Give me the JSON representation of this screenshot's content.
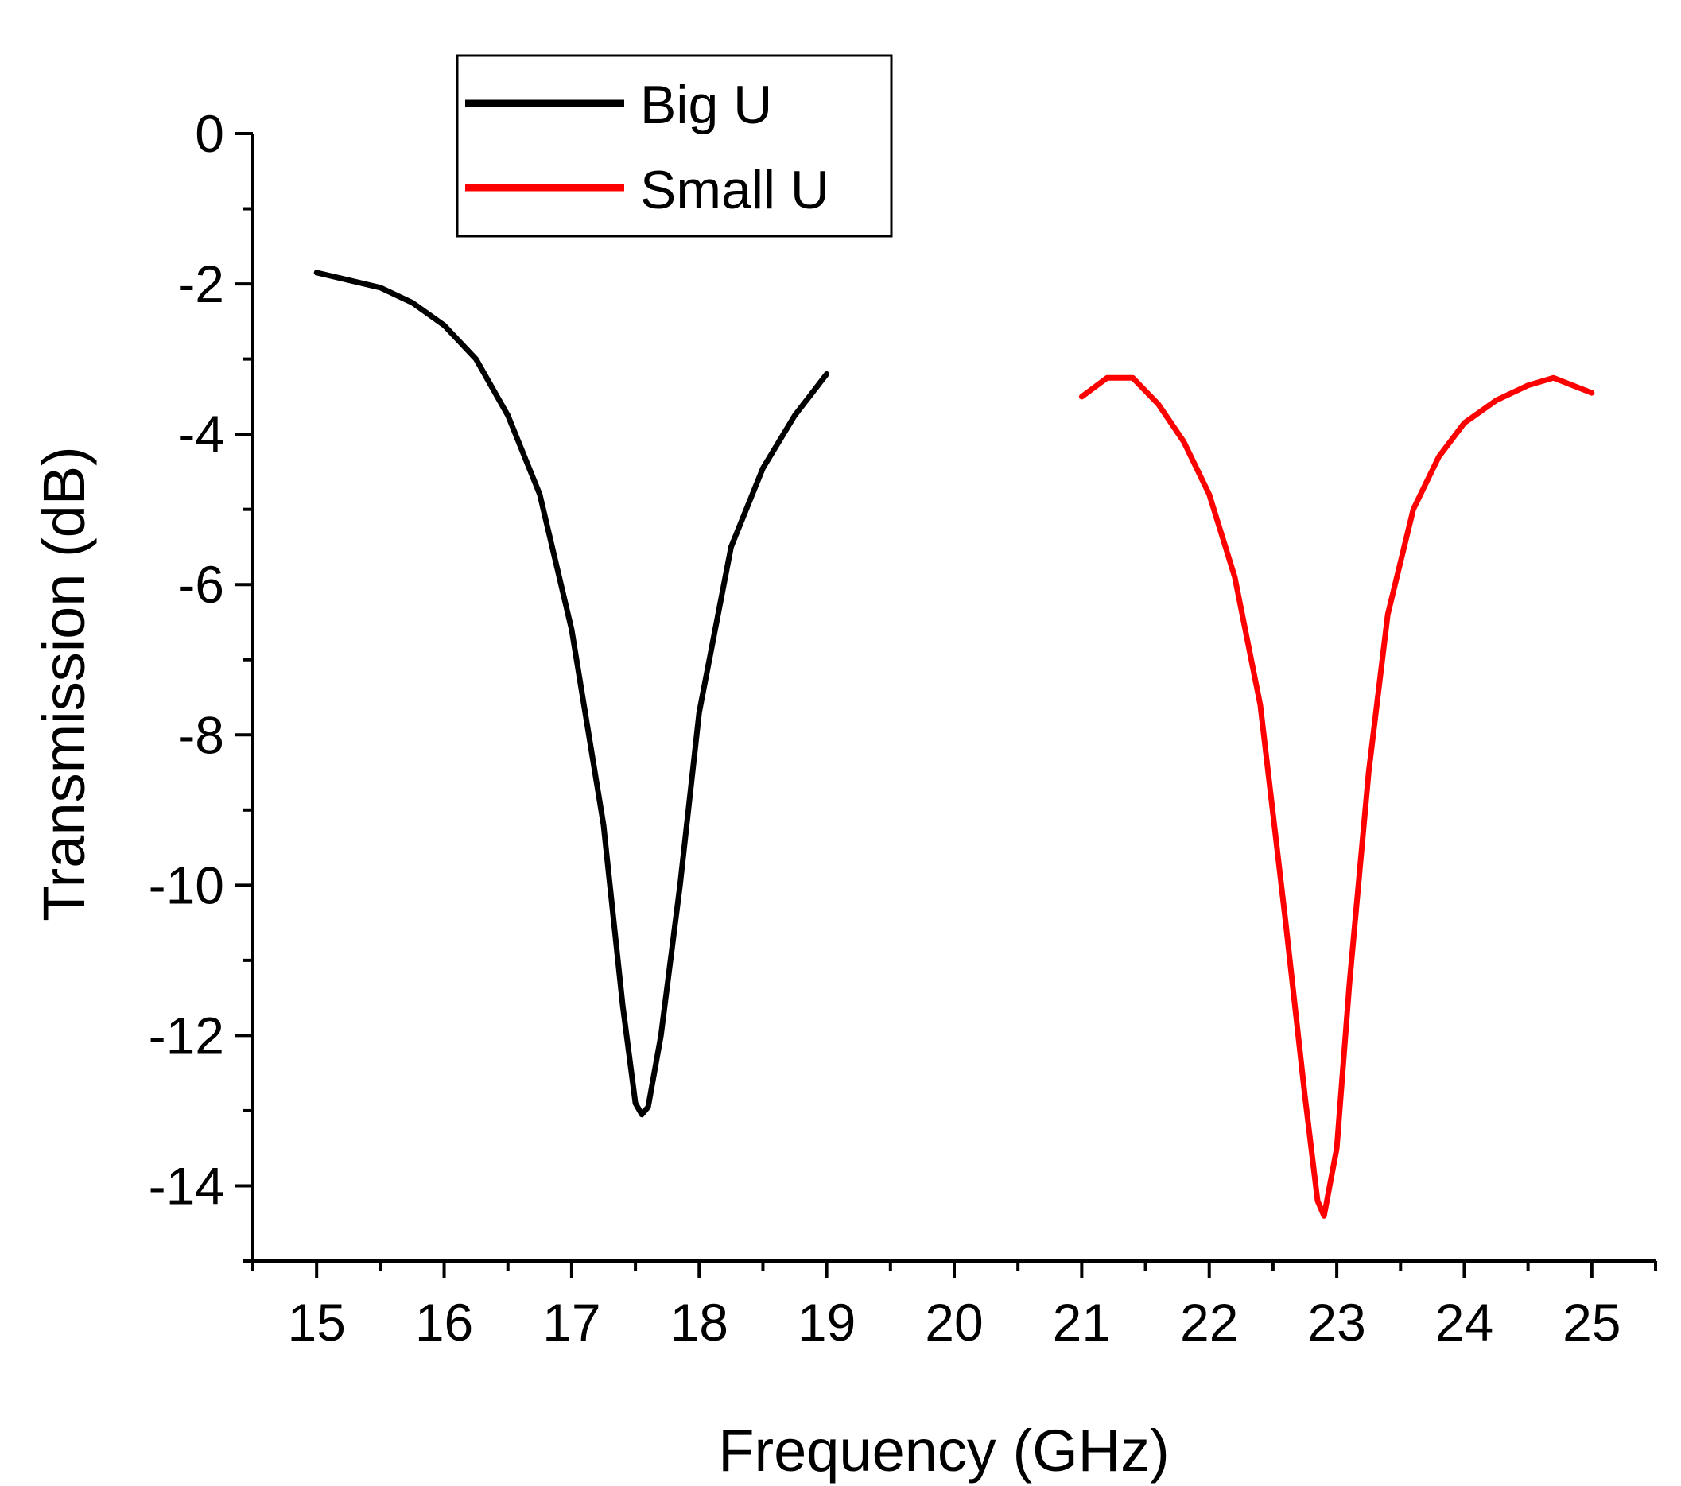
{
  "chart_data": {
    "type": "line",
    "xlabel": "Frequency (GHz)",
    "ylabel": "Transmission (dB)",
    "xlim": [
      14.5,
      25.5
    ],
    "ylim": [
      -15,
      0
    ],
    "xticks": [
      15,
      16,
      17,
      18,
      19,
      20,
      21,
      22,
      23,
      24,
      25
    ],
    "yticks": [
      0,
      -2,
      -4,
      -6,
      -8,
      -10,
      -12,
      -14
    ],
    "grid": false,
    "legend": {
      "position": "top-left",
      "entries": [
        "Big U",
        "Small U"
      ]
    },
    "series": [
      {
        "name": "Big U",
        "color": "#000000",
        "x": [
          15.0,
          15.25,
          15.5,
          15.75,
          16.0,
          16.25,
          16.5,
          16.75,
          17.0,
          17.25,
          17.4,
          17.5,
          17.55,
          17.6,
          17.7,
          17.85,
          18.0,
          18.25,
          18.5,
          18.75,
          19.0
        ],
        "y": [
          -1.85,
          -1.95,
          -2.05,
          -2.25,
          -2.55,
          -3.0,
          -3.75,
          -4.8,
          -6.6,
          -9.2,
          -11.6,
          -12.9,
          -13.05,
          -12.95,
          -12.0,
          -10.0,
          -7.7,
          -5.5,
          -4.45,
          -3.75,
          -3.2
        ]
      },
      {
        "name": "Small U",
        "color": "#ff0000",
        "x": [
          21.0,
          21.2,
          21.4,
          21.6,
          21.8,
          22.0,
          22.2,
          22.4,
          22.6,
          22.75,
          22.85,
          22.9,
          23.0,
          23.1,
          23.25,
          23.4,
          23.6,
          23.8,
          24.0,
          24.25,
          24.5,
          24.7,
          24.85,
          25.0
        ],
        "y": [
          -3.5,
          -3.25,
          -3.25,
          -3.6,
          -4.1,
          -4.8,
          -5.9,
          -7.6,
          -10.5,
          -12.8,
          -14.2,
          -14.4,
          -13.5,
          -11.3,
          -8.5,
          -6.4,
          -5.0,
          -4.3,
          -3.85,
          -3.55,
          -3.35,
          -3.25,
          -3.35,
          -3.45
        ]
      }
    ]
  }
}
